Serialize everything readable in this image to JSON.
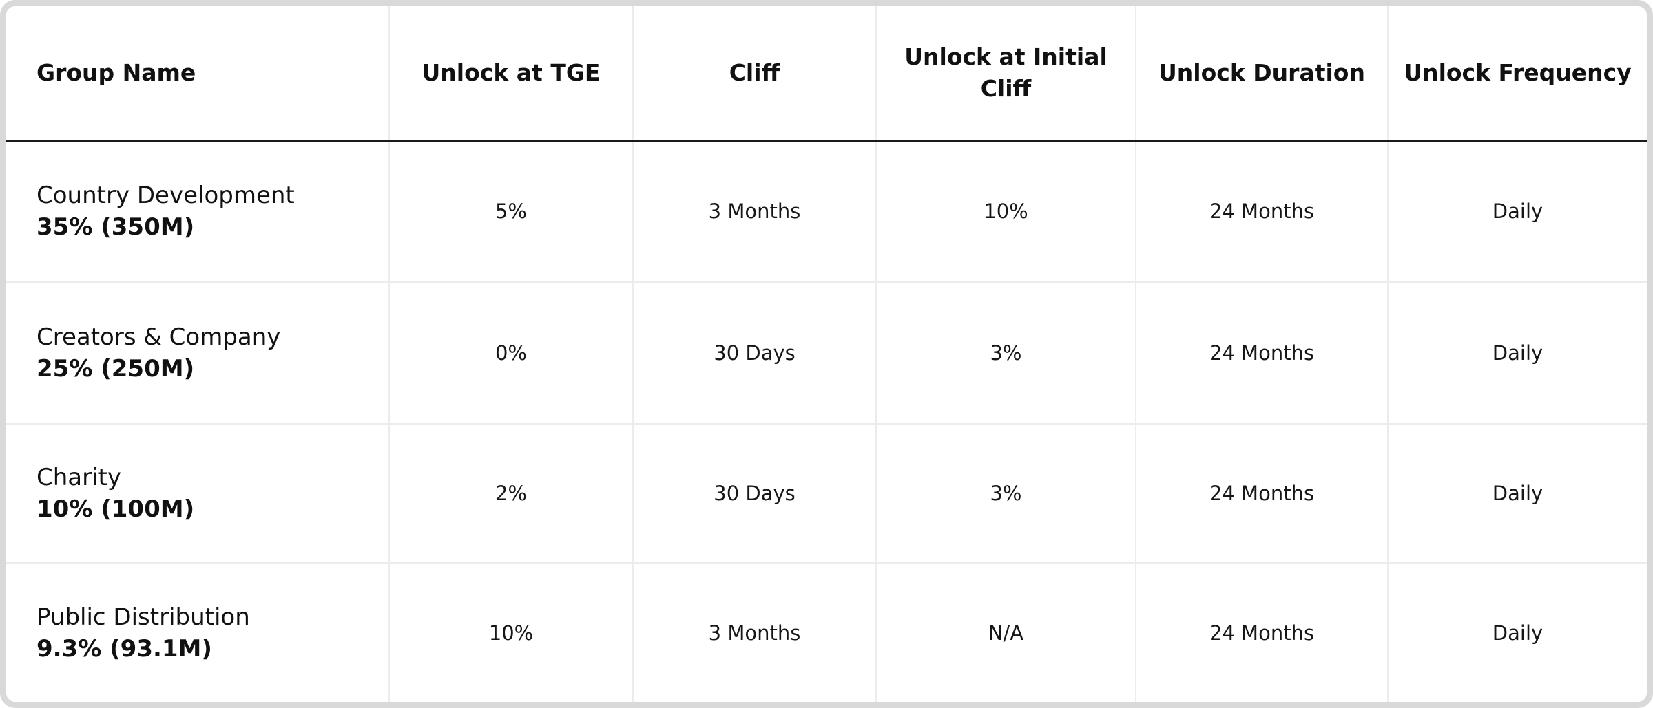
{
  "table": {
    "headers": [
      "Group Name",
      "Unlock at TGE",
      "Cliff",
      "Unlock at Initial Cliff",
      "Unlock Duration",
      "Unlock Frequency"
    ],
    "rows": [
      {
        "group_name": "Country Development",
        "share": "35% (350M)",
        "unlock_tge": "5%",
        "cliff": "3 Months",
        "unlock_initial_cliff": "10%",
        "unlock_duration": "24 Months",
        "unlock_frequency": "Daily"
      },
      {
        "group_name": "Creators & Company",
        "share": "25% (250M)",
        "unlock_tge": "0%",
        "cliff": "30 Days",
        "unlock_initial_cliff": "3%",
        "unlock_duration": "24 Months",
        "unlock_frequency": "Daily"
      },
      {
        "group_name": "Charity",
        "share": "10% (100M)",
        "unlock_tge": "2%",
        "cliff": "30 Days",
        "unlock_initial_cliff": "3%",
        "unlock_duration": "24 Months",
        "unlock_frequency": "Daily"
      },
      {
        "group_name": "Public Distribution",
        "share": "9.3% (93.1M)",
        "unlock_tge": "10%",
        "cliff": "3 Months",
        "unlock_initial_cliff": "N/A",
        "unlock_duration": "24 Months",
        "unlock_frequency": "Daily"
      }
    ]
  },
  "colors": {
    "frame_border": "#d9d9d9",
    "header_rule": "#1a1a1a",
    "grid_line": "#ececec",
    "text": "#111111",
    "background": "#ffffff"
  }
}
